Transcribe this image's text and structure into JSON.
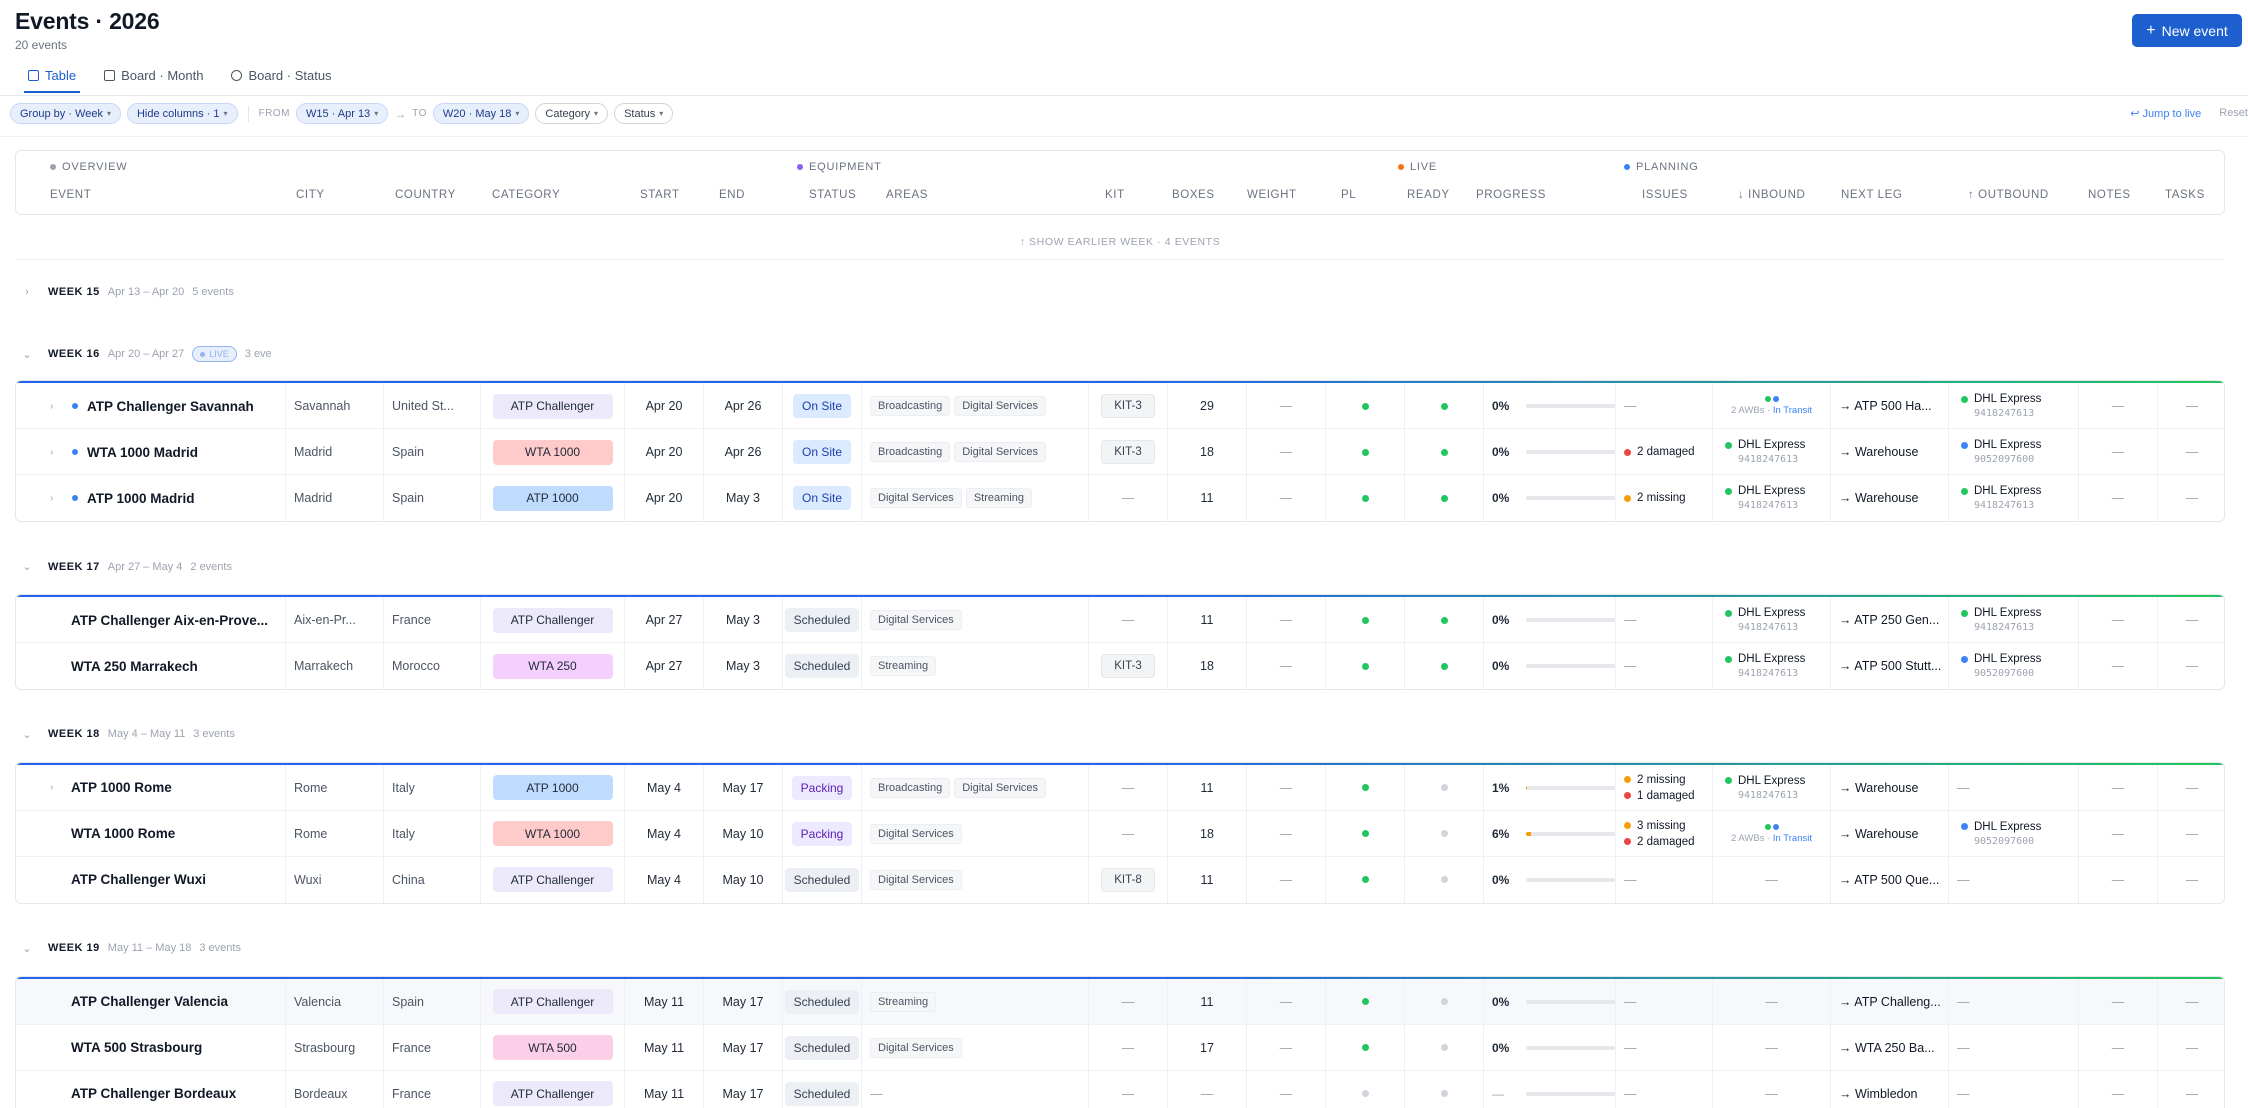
{
  "header": {
    "title": "Events · 2026",
    "subtitle": "20 events",
    "new_button_label": "New event",
    "new_button_icon": "plus-icon"
  },
  "tabs": [
    {
      "label": "Table",
      "icon": "table-icon",
      "active": true
    },
    {
      "label": "Board · Month",
      "icon": "calendar-icon",
      "active": false
    },
    {
      "label": "Board · Status",
      "icon": "check-circle-icon",
      "active": false
    }
  ],
  "filters": {
    "group_by": "Group by · Week",
    "hide_columns": "Hide columns · 1",
    "from_label": "FROM",
    "from_value": "W15 · Apr 13",
    "to_arrow": "→",
    "to_label": "TO",
    "to_value": "W20 · May 18",
    "category": "Category",
    "status": "Status",
    "jump_to_live": "↩ Jump to live",
    "reset": "Reset"
  },
  "column_groups": [
    {
      "label": "OVERVIEW",
      "color": "#9ca3af"
    },
    {
      "label": "EQUIPMENT",
      "color": "#8b5cf6"
    },
    {
      "label": "LIVE",
      "color": "#f97316"
    },
    {
      "label": "PLANNING",
      "color": "#3b82f6"
    }
  ],
  "columns": [
    "EVENT",
    "CITY",
    "COUNTRY",
    "CATEGORY",
    "START",
    "END",
    "STATUS",
    "AREAS",
    "KIT",
    "BOXES",
    "WEIGHT",
    "PL",
    "READY",
    "PROGRESS",
    "ISSUES",
    "↓ INBOUND",
    "NEXT LEG",
    "↑ OUTBOUND",
    "NOTES",
    "TASKS"
  ],
  "show_earlier": "↑ SHOW EARLIER WEEK · 4 EVENTS",
  "colors": {
    "accent": "#1d5fce",
    "green": "#22c55e",
    "orange": "#f59e0b",
    "red": "#ef4444",
    "blue": "#3b82f6"
  },
  "weeks": [
    {
      "name": "WEEK 15",
      "range": "Apr 13 – Apr 20",
      "count": "5 events",
      "collapsed": true,
      "live": false,
      "rows": []
    },
    {
      "name": "WEEK 16",
      "range": "Apr 20 – Apr 27",
      "count": "3 eve",
      "collapsed": false,
      "live": true,
      "live_label": "LIVE",
      "rows": [
        {
          "event": "ATP Challenger Savannah",
          "chevron": true,
          "live_dot": true,
          "city": "Savannah",
          "country": "United St...",
          "category": "ATP Challenger",
          "cat_color": "#ece9fb",
          "start": "Apr 20",
          "end": "Apr 26",
          "status": "On Site",
          "status_color": "#dbeafe",
          "status_text_color": "#1e40af",
          "areas": [
            "Broadcasting",
            "Digital Services"
          ],
          "kit": "KIT-3",
          "boxes": "29",
          "weight": "—",
          "pl": "green",
          "ready": "green",
          "progress": "0%",
          "progress_value": 0,
          "issues": [],
          "inbound": {
            "type": "transit",
            "awbs": "2 AWBs ·",
            "state": "In Transit"
          },
          "next_leg": "→ ATP 500 Ha...",
          "outbound": {
            "type": "carrier",
            "name": "DHL Express",
            "awb": "9418247613",
            "dot": "green"
          },
          "notes": "—",
          "tasks": "—"
        },
        {
          "event": "WTA 1000 Madrid",
          "chevron": true,
          "live_dot": true,
          "city": "Madrid",
          "country": "Spain",
          "category": "WTA 1000",
          "cat_color": "#fecaca",
          "start": "Apr 20",
          "end": "Apr 26",
          "status": "On Site",
          "status_color": "#dbeafe",
          "status_text_color": "#1e40af",
          "areas": [
            "Broadcasting",
            "Digital Services"
          ],
          "kit": "KIT-3",
          "boxes": "18",
          "weight": "—",
          "pl": "green",
          "ready": "green",
          "progress": "0%",
          "progress_value": 0,
          "issues": [
            {
              "text": "2 damaged",
              "color": "red"
            }
          ],
          "inbound": {
            "type": "carrier",
            "name": "DHL Express",
            "awb": "9418247613",
            "dot": "green"
          },
          "next_leg": "→ Warehouse",
          "outbound": {
            "type": "carrier",
            "name": "DHL Express",
            "awb": "9052097600",
            "dot": "blue"
          },
          "notes": "—",
          "tasks": "—"
        },
        {
          "event": "ATP 1000 Madrid",
          "chevron": true,
          "live_dot": true,
          "city": "Madrid",
          "country": "Spain",
          "category": "ATP 1000",
          "cat_color": "#bfdbfe",
          "start": "Apr 20",
          "end": "May 3",
          "status": "On Site",
          "status_color": "#dbeafe",
          "status_text_color": "#1e40af",
          "areas": [
            "Digital Services",
            "Streaming"
          ],
          "kit": "—",
          "boxes": "11",
          "weight": "—",
          "pl": "green",
          "ready": "green",
          "progress": "0%",
          "progress_value": 0,
          "issues": [
            {
              "text": "2 missing",
              "color": "orange"
            }
          ],
          "inbound": {
            "type": "carrier",
            "name": "DHL Express",
            "awb": "9418247613",
            "dot": "green"
          },
          "next_leg": "→ Warehouse",
          "outbound": {
            "type": "carrier",
            "name": "DHL Express",
            "awb": "9418247613",
            "dot": "green"
          },
          "notes": "—",
          "tasks": "—"
        }
      ]
    },
    {
      "name": "WEEK 17",
      "range": "Apr 27 – May 4",
      "count": "2 events",
      "collapsed": false,
      "live": false,
      "rows": [
        {
          "event": "ATP Challenger Aix-en-Prove...",
          "chevron": false,
          "live_dot": false,
          "city": "Aix-en-Pr...",
          "country": "France",
          "category": "ATP Challenger",
          "cat_color": "#ece9fb",
          "start": "Apr 27",
          "end": "May 3",
          "status": "Scheduled",
          "status_color": "#eceff3",
          "status_text_color": "#374151",
          "areas": [
            "Digital Services"
          ],
          "kit": "—",
          "boxes": "11",
          "weight": "—",
          "pl": "green",
          "ready": "green",
          "progress": "0%",
          "progress_value": 0,
          "issues": [],
          "inbound": {
            "type": "carrier",
            "name": "DHL Express",
            "awb": "9418247613",
            "dot": "green"
          },
          "next_leg": "→ ATP 250 Gen...",
          "outbound": {
            "type": "carrier",
            "name": "DHL Express",
            "awb": "9418247613",
            "dot": "green"
          },
          "notes": "—",
          "tasks": "—"
        },
        {
          "event": "WTA 250 Marrakech",
          "chevron": false,
          "live_dot": false,
          "city": "Marrakech",
          "country": "Morocco",
          "category": "WTA 250",
          "cat_color": "#f5d0fe",
          "start": "Apr 27",
          "end": "May 3",
          "status": "Scheduled",
          "status_color": "#eceff3",
          "status_text_color": "#374151",
          "areas": [
            "Streaming"
          ],
          "kit": "KIT-3",
          "boxes": "18",
          "weight": "—",
          "pl": "green",
          "ready": "green",
          "progress": "0%",
          "progress_value": 0,
          "issues": [],
          "inbound": {
            "type": "carrier",
            "name": "DHL Express",
            "awb": "9418247613",
            "dot": "green"
          },
          "next_leg": "→ ATP 500 Stutt...",
          "outbound": {
            "type": "carrier",
            "name": "DHL Express",
            "awb": "9052097600",
            "dot": "blue"
          },
          "notes": "—",
          "tasks": "—"
        }
      ]
    },
    {
      "name": "WEEK 18",
      "range": "May 4 – May 11",
      "count": "3 events",
      "collapsed": false,
      "live": false,
      "rows": [
        {
          "event": "ATP 1000 Rome",
          "chevron": true,
          "live_dot": false,
          "city": "Rome",
          "country": "Italy",
          "category": "ATP 1000",
          "cat_color": "#bfdbfe",
          "start": "May 4",
          "end": "May 17",
          "status": "Packing",
          "status_color": "#ede9fe",
          "status_text_color": "#5b21b6",
          "areas": [
            "Broadcasting",
            "Digital Services"
          ],
          "kit": "—",
          "boxes": "11",
          "weight": "—",
          "pl": "green",
          "ready": "gray",
          "progress": "1%",
          "progress_value": 1,
          "issues": [
            {
              "text": "2 missing",
              "color": "orange"
            },
            {
              "text": "1 damaged",
              "color": "red"
            }
          ],
          "inbound": {
            "type": "carrier",
            "name": "DHL Express",
            "awb": "9418247613",
            "dot": "green"
          },
          "next_leg": "→ Warehouse",
          "outbound": {
            "type": "none"
          },
          "notes": "—",
          "tasks": "—"
        },
        {
          "event": "WTA 1000 Rome",
          "chevron": false,
          "live_dot": false,
          "city": "Rome",
          "country": "Italy",
          "category": "WTA 1000",
          "cat_color": "#fecaca",
          "start": "May 4",
          "end": "May 10",
          "status": "Packing",
          "status_color": "#ede9fe",
          "status_text_color": "#5b21b6",
          "areas": [
            "Digital Services"
          ],
          "kit": "—",
          "boxes": "18",
          "weight": "—",
          "pl": "green",
          "ready": "gray",
          "progress": "6%",
          "progress_value": 6,
          "issues": [
            {
              "text": "3 missing",
              "color": "orange"
            },
            {
              "text": "2 damaged",
              "color": "red"
            }
          ],
          "inbound": {
            "type": "transit",
            "awbs": "2 AWBs ·",
            "state": "In Transit"
          },
          "next_leg": "→ Warehouse",
          "outbound": {
            "type": "carrier",
            "name": "DHL Express",
            "awb": "9052097600",
            "dot": "blue"
          },
          "notes": "—",
          "tasks": "—"
        },
        {
          "event": "ATP Challenger Wuxi",
          "chevron": false,
          "live_dot": false,
          "city": "Wuxi",
          "country": "China",
          "category": "ATP Challenger",
          "cat_color": "#ece9fb",
          "start": "May 4",
          "end": "May 10",
          "status": "Scheduled",
          "status_color": "#eceff3",
          "status_text_color": "#374151",
          "areas": [
            "Digital Services"
          ],
          "kit": "KIT-8",
          "boxes": "11",
          "weight": "—",
          "pl": "green",
          "ready": "gray",
          "progress": "0%",
          "progress_value": 0,
          "issues": [],
          "inbound": {
            "type": "none"
          },
          "next_leg": "→ ATP 500 Que...",
          "outbound": {
            "type": "none"
          },
          "notes": "—",
          "tasks": "—"
        }
      ]
    },
    {
      "name": "WEEK 19",
      "range": "May 11 – May 18",
      "count": "3 events",
      "collapsed": false,
      "live": false,
      "rows": [
        {
          "event": "ATP Challenger Valencia",
          "chevron": false,
          "live_dot": false,
          "highlight": true,
          "city": "Valencia",
          "country": "Spain",
          "category": "ATP Challenger",
          "cat_color": "#ece9fb",
          "start": "May 11",
          "end": "May 17",
          "status": "Scheduled",
          "status_color": "#eceff3",
          "status_text_color": "#374151",
          "areas": [
            "Streaming"
          ],
          "kit": "—",
          "boxes": "11",
          "weight": "—",
          "pl": "green",
          "ready": "gray",
          "progress": "0%",
          "progress_value": 0,
          "issues": [],
          "inbound": {
            "type": "none"
          },
          "next_leg": "→ ATP Challeng...",
          "outbound": {
            "type": "none"
          },
          "notes": "—",
          "tasks": "—"
        },
        {
          "event": "WTA 500 Strasbourg",
          "chevron": false,
          "live_dot": false,
          "city": "Strasbourg",
          "country": "France",
          "category": "WTA 500",
          "cat_color": "#fbcfe8",
          "start": "May 11",
          "end": "May 17",
          "status": "Scheduled",
          "status_color": "#eceff3",
          "status_text_color": "#374151",
          "areas": [
            "Digital Services"
          ],
          "kit": "—",
          "boxes": "17",
          "weight": "—",
          "pl": "green",
          "ready": "gray",
          "progress": "0%",
          "progress_value": 0,
          "issues": [],
          "inbound": {
            "type": "none"
          },
          "next_leg": "→ WTA 250 Ba...",
          "outbound": {
            "type": "none"
          },
          "notes": "—",
          "tasks": "—"
        },
        {
          "event": "ATP Challenger Bordeaux",
          "chevron": false,
          "live_dot": false,
          "city": "Bordeaux",
          "country": "France",
          "category": "ATP Challenger",
          "cat_color": "#ece9fb",
          "start": "May 11",
          "end": "May 17",
          "status": "Scheduled",
          "status_color": "#eceff3",
          "status_text_color": "#374151",
          "areas": [
            "—"
          ],
          "kit": "—",
          "boxes": "—",
          "weight": "—",
          "pl": "gray",
          "ready": "gray",
          "progress": "—",
          "progress_value": 0,
          "issues": [],
          "inbound": {
            "type": "none"
          },
          "next_leg": "→ Wimbledon",
          "outbound": {
            "type": "none"
          },
          "notes": "—",
          "tasks": "—"
        }
      ]
    }
  ]
}
